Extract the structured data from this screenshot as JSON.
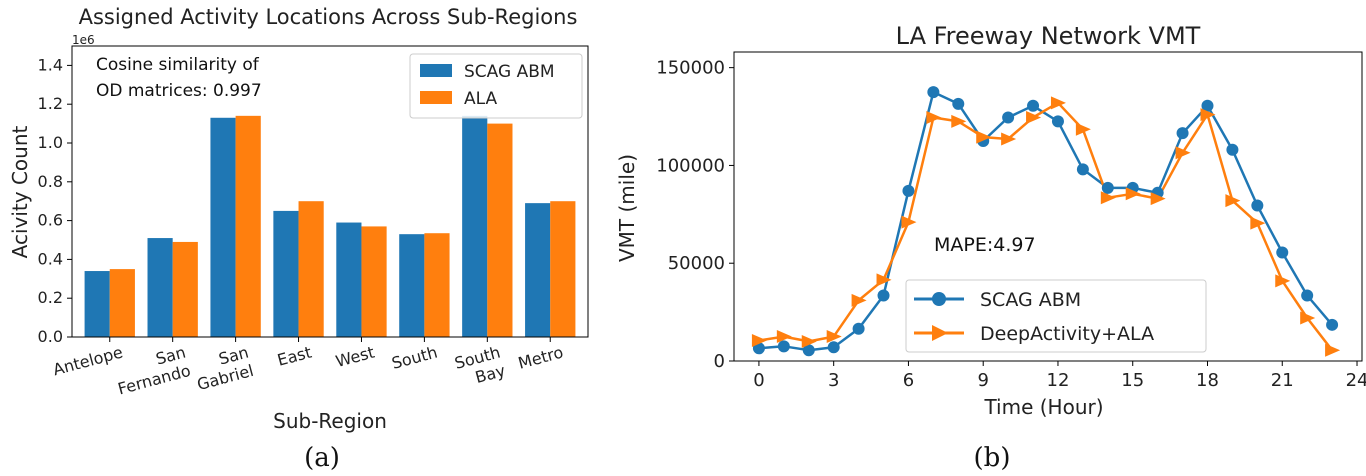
{
  "chart_data": [
    {
      "type": "bar",
      "title": "Assigned Activity Locations Across Sub-Regions",
      "xlabel": "Sub-Region",
      "ylabel": "Acivity Count",
      "y_offset_label": "1e6",
      "ylim": [
        0,
        1.5
      ],
      "yticks": [
        "0.0",
        "0.2",
        "0.4",
        "0.6",
        "0.8",
        "1.0",
        "1.2",
        "1.4"
      ],
      "categories": [
        "Antelope",
        "San Fernando",
        "San Gabriel",
        "East",
        "West",
        "South",
        "South Bay",
        "Metro"
      ],
      "category_lines": [
        [
          "Antelope"
        ],
        [
          "San",
          "Fernando"
        ],
        [
          "San",
          "Gabriel"
        ],
        [
          "East"
        ],
        [
          "West"
        ],
        [
          "South"
        ],
        [
          "South",
          "Bay"
        ],
        [
          "Metro"
        ]
      ],
      "series": [
        {
          "name": "SCAG ABM",
          "color": "#1f77b4",
          "values": [
            0.34,
            0.51,
            1.13,
            0.65,
            0.59,
            0.53,
            1.14,
            0.69
          ]
        },
        {
          "name": "ALA",
          "color": "#ff7f0e",
          "values": [
            0.35,
            0.49,
            1.14,
            0.7,
            0.57,
            0.535,
            1.1,
            0.7
          ]
        }
      ],
      "annotation_lines": [
        "Cosine similarity of",
        "OD matrices: 0.997"
      ],
      "legend_position": "top-right",
      "grid": false,
      "caption": "(a)"
    },
    {
      "type": "line",
      "title": "LA Freeway Network VMT",
      "xlabel": "Time (Hour)",
      "ylabel": "VMT (mile)",
      "xlim": [
        -1.0,
        24.2
      ],
      "ylim": [
        0,
        158000
      ],
      "xticks": [
        0,
        3,
        6,
        9,
        12,
        15,
        18,
        21,
        24
      ],
      "yticks": [
        0,
        50000,
        100000,
        150000
      ],
      "x": [
        0,
        1,
        2,
        3,
        4,
        5,
        6,
        7,
        8,
        9,
        10,
        11,
        12,
        13,
        14,
        15,
        16,
        17,
        18,
        19,
        20,
        21,
        22,
        23
      ],
      "series": [
        {
          "name": "SCAG ABM",
          "color": "#1f77b4",
          "marker": "circle",
          "values": [
            6500,
            7500,
            5500,
            7000,
            16500,
            33500,
            87000,
            137500,
            131500,
            112500,
            124500,
            130500,
            122500,
            98000,
            88500,
            88500,
            86000,
            116500,
            130500,
            108000,
            79500,
            55500,
            33500,
            18500
          ]
        },
        {
          "name": "DeepActivity+ALA",
          "color": "#ff7f0e",
          "marker": "triangle-right",
          "values": [
            10500,
            12500,
            10000,
            12500,
            31000,
            41500,
            71000,
            124500,
            122500,
            114500,
            113500,
            124500,
            132000,
            118500,
            83500,
            85500,
            83000,
            106500,
            126000,
            82000,
            70500,
            41000,
            22000,
            5500
          ]
        }
      ],
      "annotation": "MAPE:4.97",
      "legend_position": "lower-center",
      "grid": false,
      "caption": "(b)"
    }
  ]
}
